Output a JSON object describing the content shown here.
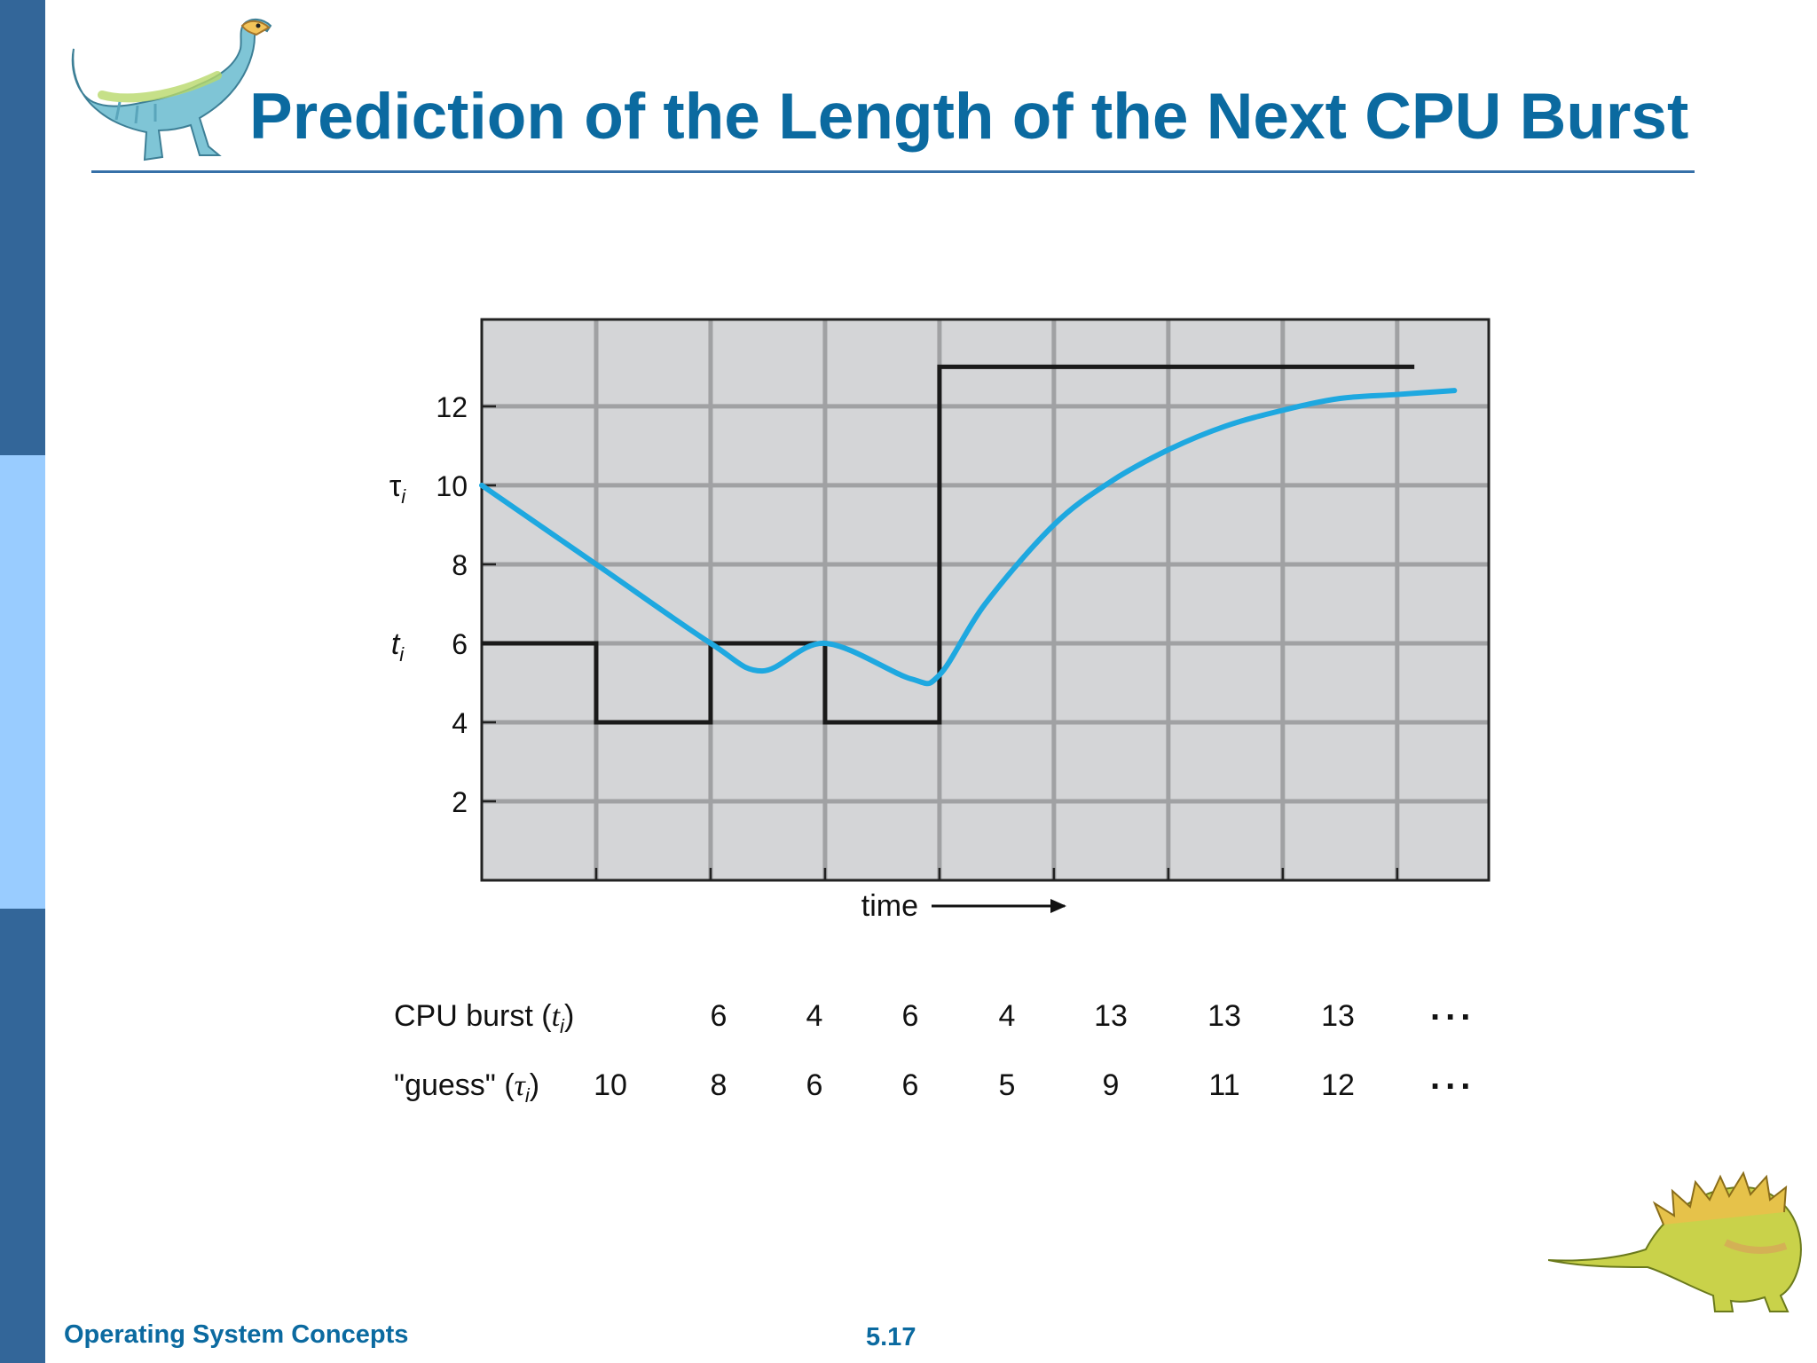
{
  "slide": {
    "title": "Prediction of the Length of the Next CPU Burst",
    "footer_left": "Operating System Concepts",
    "page_number": "5.17"
  },
  "colors": {
    "title": "#0b6aa0",
    "sidebar_dark": "#336699",
    "sidebar_light": "#99ccff",
    "rule": "#3670a8",
    "plot_bg": "#d4d5d7",
    "grid": "#a0a1a3",
    "burst_line": "#1a1a1a",
    "guess_line": "#1ea8e0"
  },
  "icons": {
    "top": "dinosaur-icon",
    "bottom": "stegosaurus-icon"
  },
  "chart_data": {
    "type": "line",
    "xlabel": "time",
    "x_ticks": [
      0,
      1,
      2,
      3,
      4,
      5,
      6,
      7,
      8
    ],
    "yticks": [
      2,
      4,
      6,
      8,
      10,
      12
    ],
    "xlim": [
      0,
      8.8
    ],
    "ylim": [
      0,
      14.2
    ],
    "grid": true,
    "y_markers": [
      {
        "label": "τ",
        "sub": "i",
        "y": 10,
        "style": "serif"
      },
      {
        "label": "t",
        "sub": "i",
        "y": 6,
        "style": "italic"
      }
    ],
    "series": [
      {
        "name": "CPU burst (t_i)",
        "kind": "step",
        "x": [
          0,
          1,
          2,
          3,
          4,
          5,
          6,
          7,
          8.15
        ],
        "values": [
          6,
          4,
          6,
          4,
          13,
          13,
          13,
          13,
          13
        ]
      },
      {
        "name": "\"guess\" (τ_i)",
        "kind": "smooth",
        "x": [
          0,
          1,
          2,
          2.45,
          3,
          3.75,
          4,
          4.4,
          5,
          5.5,
          6,
          6.5,
          7,
          7.5,
          8,
          8.5
        ],
        "values": [
          10,
          8,
          6,
          5.3,
          6,
          5.1,
          5.2,
          7,
          9,
          10.1,
          10.9,
          11.5,
          11.9,
          12.2,
          12.3,
          12.4
        ]
      }
    ]
  },
  "table": {
    "rows": [
      {
        "label": "CPU burst (",
        "var": "t",
        "sub": "i",
        "cells": [
          "",
          "6",
          "4",
          "6",
          "4",
          "13",
          "13",
          "13"
        ],
        "ellipsis": "..."
      },
      {
        "label": "\"guess\" (",
        "var": "τ",
        "sub": "i",
        "cells": [
          "10",
          "8",
          "6",
          "6",
          "5",
          "9",
          "11",
          "12"
        ],
        "ellipsis": "..."
      }
    ]
  }
}
